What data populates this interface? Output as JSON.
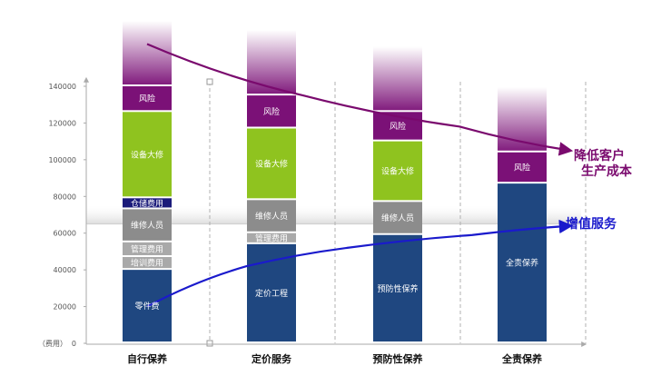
{
  "chart_data": {
    "type": "bar",
    "stacked": true,
    "y_unit_label": "（费用）",
    "ylim": [
      0,
      150000
    ],
    "yticks": [
      0,
      20000,
      40000,
      60000,
      80000,
      100000,
      120000,
      140000
    ],
    "ytick_labels": [
      "0",
      "20000",
      "40000",
      "60000",
      "80000",
      "100000",
      "120000",
      "140000"
    ],
    "categories": [
      "自行保养",
      "定价服务",
      "预防性保养",
      "全责保养"
    ],
    "stacks": [
      [
        {
          "label": "零件费",
          "value": 40000,
          "color": "#1f4780"
        },
        {
          "label": "培训费用",
          "value": 7000,
          "color": "#a9a9a9"
        },
        {
          "label": "管理费用",
          "value": 8000,
          "color": "#a9a9a9"
        },
        {
          "label": "维修人员",
          "value": 18000,
          "color": "#8c8c8c"
        },
        {
          "label": "仓储费用",
          "value": 6000,
          "color": "#1a1a7a"
        },
        {
          "label": "设备大修",
          "value": 47000,
          "color": "#8fc31f"
        },
        {
          "label": "风险",
          "value": 14000,
          "color": "#7b1177"
        }
      ],
      [
        {
          "label": "定价工程",
          "value": 54000,
          "color": "#1f4780"
        },
        {
          "label": "管理费用",
          "value": 6000,
          "color": "#a9a9a9"
        },
        {
          "label": "维修人员",
          "value": 18000,
          "color": "#8c8c8c"
        },
        {
          "label": "设备大修",
          "value": 39000,
          "color": "#8fc31f"
        },
        {
          "label": "风险",
          "value": 18000,
          "color": "#7b1177"
        }
      ],
      [
        {
          "label": "预防性保养",
          "value": 59000,
          "color": "#1f4780"
        },
        {
          "label": "维修人员",
          "value": 18000,
          "color": "#8c8c8c"
        },
        {
          "label": "设备大修",
          "value": 33000,
          "color": "#8fc31f"
        },
        {
          "label": "风险",
          "value": 16000,
          "color": "#7b1177"
        }
      ],
      [
        {
          "label": "全责保养",
          "value": 87000,
          "color": "#1f4780"
        },
        {
          "label": "风险",
          "value": 17000,
          "color": "#7b1177"
        }
      ]
    ],
    "cap_color": "#7b1177",
    "band": {
      "value": 65000,
      "color": "#cfcfcf"
    },
    "trend_cost": {
      "label_line1": "降低客户",
      "label_line2": "生产成本",
      "color": "#7a0a6e",
      "points": [
        [
          0,
          163000
        ],
        [
          1.25,
          135000
        ],
        [
          2.5,
          118000
        ],
        [
          3.7,
          105000
        ]
      ]
    },
    "trend_service": {
      "label": "增值服务",
      "color": "#1a1acc",
      "points": [
        [
          0,
          20000
        ],
        [
          0.8,
          42000
        ],
        [
          1.6,
          52000
        ],
        [
          2.6,
          59000
        ],
        [
          3.7,
          64000
        ]
      ]
    }
  }
}
